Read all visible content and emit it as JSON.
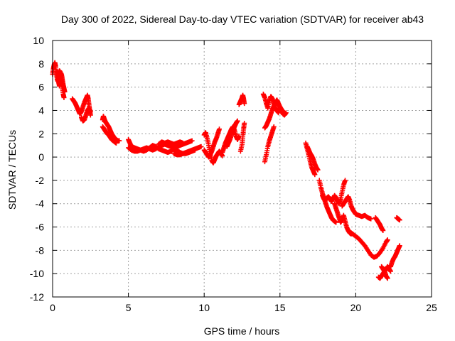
{
  "chart_data": {
    "type": "scatter",
    "title": "Day 300 of 2022, Sidereal Day-to-day VTEC variation (SDTVAR) for receiver ab43",
    "xlabel": "GPS time / hours",
    "ylabel": "SDTVAR / TECUs",
    "xlim": [
      0,
      25
    ],
    "ylim": [
      -12,
      10
    ],
    "xticks": [
      0,
      5,
      10,
      15,
      20,
      25
    ],
    "yticks": [
      -12,
      -10,
      -8,
      -6,
      -4,
      -2,
      0,
      2,
      4,
      6,
      8,
      10
    ],
    "grid": true,
    "marker": "plus",
    "color": "#ff0000",
    "segments": [
      [
        [
          0.0,
          7.1
        ],
        [
          0.05,
          7.6
        ],
        [
          0.1,
          7.9
        ],
        [
          0.15,
          8.1
        ],
        [
          0.2,
          7.8
        ],
        [
          0.25,
          7.2
        ],
        [
          0.3,
          6.7
        ],
        [
          0.35,
          6.5
        ],
        [
          0.4,
          7.0
        ],
        [
          0.45,
          7.4
        ],
        [
          0.5,
          7.3
        ],
        [
          0.55,
          6.9
        ],
        [
          0.6,
          6.5
        ],
        [
          0.65,
          6.0
        ],
        [
          0.7,
          5.4
        ],
        [
          0.75,
          5.1
        ]
      ],
      [
        [
          0.3,
          7.3
        ],
        [
          0.35,
          6.9
        ],
        [
          0.4,
          6.4
        ],
        [
          0.45,
          6.1
        ],
        [
          0.5,
          6.7
        ],
        [
          0.55,
          7.2
        ],
        [
          0.6,
          7.0
        ],
        [
          0.65,
          6.6
        ],
        [
          0.7,
          6.2
        ],
        [
          0.75,
          5.9
        ],
        [
          0.8,
          5.6
        ]
      ],
      [
        [
          1.3,
          5.0
        ],
        [
          1.4,
          4.8
        ],
        [
          1.5,
          4.6
        ],
        [
          1.6,
          4.3
        ],
        [
          1.7,
          4.0
        ],
        [
          1.8,
          3.7
        ],
        [
          1.9,
          3.9
        ],
        [
          2.0,
          4.3
        ],
        [
          2.1,
          4.7
        ],
        [
          2.2,
          5.0
        ],
        [
          2.3,
          5.3
        ],
        [
          2.35,
          5.0
        ],
        [
          2.4,
          4.5
        ],
        [
          2.45,
          4.0
        ],
        [
          2.5,
          3.6
        ]
      ],
      [
        [
          1.9,
          3.4
        ],
        [
          2.0,
          3.1
        ],
        [
          2.1,
          3.2
        ],
        [
          2.2,
          3.6
        ],
        [
          2.3,
          4.0
        ],
        [
          2.4,
          4.2
        ],
        [
          2.5,
          3.9
        ]
      ],
      [
        [
          3.3,
          3.2
        ],
        [
          3.35,
          3.5
        ],
        [
          3.4,
          3.3
        ],
        [
          3.5,
          3.0
        ],
        [
          3.6,
          2.8
        ],
        [
          3.7,
          2.6
        ],
        [
          3.8,
          2.3
        ],
        [
          3.9,
          2.0
        ],
        [
          4.0,
          1.8
        ],
        [
          4.1,
          1.6
        ],
        [
          4.2,
          1.5
        ],
        [
          4.3,
          1.4
        ],
        [
          4.4,
          1.4
        ]
      ],
      [
        [
          3.3,
          2.6
        ],
        [
          3.4,
          2.4
        ],
        [
          3.5,
          2.2
        ],
        [
          3.6,
          2.0
        ],
        [
          3.7,
          1.9
        ],
        [
          3.8,
          1.7
        ],
        [
          3.9,
          1.5
        ],
        [
          4.0,
          1.4
        ],
        [
          4.1,
          1.3
        ],
        [
          4.2,
          1.2
        ]
      ],
      [
        [
          5.0,
          1.5
        ],
        [
          5.1,
          1.2
        ],
        [
          5.2,
          0.9
        ],
        [
          5.4,
          0.8
        ],
        [
          5.6,
          0.7
        ],
        [
          5.8,
          0.6
        ],
        [
          6.0,
          0.7
        ],
        [
          6.2,
          0.8
        ],
        [
          6.4,
          0.7
        ],
        [
          6.6,
          0.6
        ],
        [
          6.8,
          0.7
        ],
        [
          7.0,
          0.9
        ],
        [
          7.2,
          1.0
        ],
        [
          7.4,
          1.1
        ],
        [
          7.6,
          1.0
        ],
        [
          7.8,
          0.9
        ],
        [
          8.0,
          0.8
        ],
        [
          8.2,
          0.9
        ],
        [
          8.4,
          1.0
        ],
        [
          8.6,
          1.1
        ],
        [
          8.8,
          1.2
        ],
        [
          9.0,
          1.3
        ],
        [
          9.2,
          1.4
        ]
      ],
      [
        [
          5.0,
          0.8
        ],
        [
          5.2,
          0.6
        ],
        [
          5.4,
          0.5
        ],
        [
          5.6,
          0.5
        ],
        [
          5.8,
          0.6
        ],
        [
          6.0,
          0.5
        ],
        [
          6.2,
          0.6
        ],
        [
          6.4,
          0.8
        ],
        [
          6.6,
          1.0
        ],
        [
          6.8,
          0.9
        ],
        [
          7.0,
          0.7
        ],
        [
          7.2,
          0.6
        ],
        [
          7.4,
          0.5
        ],
        [
          7.6,
          0.4
        ],
        [
          7.8,
          0.5
        ],
        [
          8.0,
          0.7
        ],
        [
          8.2,
          0.6
        ],
        [
          8.4,
          0.4
        ],
        [
          8.6,
          0.3
        ],
        [
          8.8,
          0.3
        ],
        [
          9.0,
          0.4
        ],
        [
          9.2,
          0.5
        ],
        [
          9.4,
          0.6
        ]
      ],
      [
        [
          7.0,
          1.1
        ],
        [
          7.2,
          1.3
        ],
        [
          7.4,
          1.2
        ],
        [
          7.6,
          1.3
        ],
        [
          7.8,
          1.2
        ],
        [
          8.0,
          1.1
        ],
        [
          8.2,
          1.2
        ],
        [
          8.4,
          1.3
        ],
        [
          8.6,
          1.2
        ]
      ],
      [
        [
          8.0,
          0.3
        ],
        [
          8.2,
          0.2
        ],
        [
          8.4,
          0.2
        ],
        [
          8.6,
          0.3
        ],
        [
          8.8,
          0.4
        ],
        [
          9.0,
          0.5
        ],
        [
          9.2,
          0.6
        ],
        [
          9.4,
          0.7
        ],
        [
          9.6,
          0.8
        ],
        [
          9.8,
          0.9
        ]
      ],
      [
        [
          10.0,
          1.9
        ],
        [
          10.1,
          2.1
        ],
        [
          10.2,
          1.6
        ],
        [
          10.3,
          1.0
        ],
        [
          10.4,
          0.3
        ],
        [
          10.5,
          -0.3
        ],
        [
          10.6,
          -0.5
        ],
        [
          10.7,
          -0.2
        ],
        [
          10.8,
          0.1
        ],
        [
          10.9,
          0.3
        ],
        [
          11.0,
          0.5
        ],
        [
          11.1,
          0.3
        ],
        [
          11.2,
          0.1
        ]
      ],
      [
        [
          10.0,
          0.6
        ],
        [
          10.1,
          0.4
        ],
        [
          10.2,
          0.2
        ],
        [
          10.3,
          0.0
        ],
        [
          10.4,
          0.2
        ],
        [
          10.5,
          0.5
        ],
        [
          10.6,
          0.9
        ],
        [
          10.7,
          1.3
        ],
        [
          10.8,
          1.6
        ],
        [
          10.9,
          2.0
        ],
        [
          11.0,
          2.4
        ]
      ],
      [
        [
          11.2,
          0.4
        ],
        [
          11.3,
          0.8
        ],
        [
          11.4,
          1.2
        ],
        [
          11.5,
          1.5
        ],
        [
          11.6,
          1.8
        ],
        [
          11.7,
          2.1
        ],
        [
          11.8,
          2.4
        ],
        [
          11.9,
          2.6
        ],
        [
          12.0,
          2.3
        ],
        [
          12.1,
          1.8
        ],
        [
          12.2,
          1.5
        ],
        [
          12.3,
          1.8
        ]
      ],
      [
        [
          11.5,
          0.9
        ],
        [
          11.6,
          1.2
        ],
        [
          11.7,
          1.5
        ],
        [
          11.8,
          1.9
        ],
        [
          11.9,
          2.3
        ],
        [
          12.0,
          2.6
        ],
        [
          12.1,
          2.9
        ],
        [
          12.2,
          3.1
        ]
      ],
      [
        [
          12.3,
          4.5
        ],
        [
          12.4,
          4.8
        ],
        [
          12.5,
          5.1
        ],
        [
          12.55,
          5.3
        ],
        [
          12.6,
          5.0
        ],
        [
          12.65,
          4.6
        ]
      ],
      [
        [
          12.4,
          0.5
        ],
        [
          12.5,
          1.1
        ],
        [
          12.55,
          1.8
        ],
        [
          12.6,
          2.4
        ],
        [
          12.65,
          2.9
        ]
      ],
      [
        [
          13.9,
          5.4
        ],
        [
          14.0,
          5.1
        ],
        [
          14.1,
          4.6
        ],
        [
          14.2,
          4.2
        ],
        [
          14.3,
          4.8
        ],
        [
          14.4,
          5.2
        ],
        [
          14.5,
          5.0
        ],
        [
          14.6,
          4.6
        ],
        [
          14.7,
          4.2
        ],
        [
          14.8,
          4.0
        ],
        [
          14.9,
          3.8
        ],
        [
          15.0,
          4.3
        ],
        [
          15.1,
          4.0
        ],
        [
          15.2,
          3.7
        ],
        [
          15.3,
          3.6
        ],
        [
          15.4,
          3.8
        ]
      ],
      [
        [
          14.0,
          2.5
        ],
        [
          14.1,
          2.7
        ],
        [
          14.2,
          3.0
        ],
        [
          14.3,
          3.3
        ],
        [
          14.4,
          3.7
        ],
        [
          14.5,
          4.1
        ],
        [
          14.6,
          4.4
        ],
        [
          14.7,
          4.7
        ],
        [
          14.8,
          4.9
        ],
        [
          14.9,
          4.6
        ],
        [
          15.0,
          4.3
        ],
        [
          15.1,
          4.1
        ],
        [
          15.2,
          3.9
        ],
        [
          15.3,
          3.7
        ]
      ],
      [
        [
          14.0,
          -0.4
        ],
        [
          14.1,
          0.2
        ],
        [
          14.2,
          0.9
        ],
        [
          14.3,
          1.4
        ],
        [
          14.4,
          1.8
        ],
        [
          14.5,
          2.2
        ],
        [
          14.6,
          2.6
        ]
      ],
      [
        [
          16.7,
          1.2
        ],
        [
          16.8,
          0.7
        ],
        [
          16.9,
          0.2
        ],
        [
          17.0,
          -0.4
        ],
        [
          17.1,
          -0.9
        ],
        [
          17.2,
          -1.2
        ],
        [
          17.3,
          -1.5
        ]
      ],
      [
        [
          16.8,
          0.9
        ],
        [
          16.9,
          0.6
        ],
        [
          17.0,
          0.3
        ],
        [
          17.1,
          0.1
        ],
        [
          17.2,
          -0.2
        ],
        [
          17.3,
          -0.6
        ],
        [
          17.4,
          -0.9
        ],
        [
          17.5,
          -1.1
        ]
      ],
      [
        [
          17.6,
          -2.0
        ],
        [
          17.7,
          -2.6
        ],
        [
          17.8,
          -3.1
        ],
        [
          17.9,
          -3.5
        ],
        [
          18.0,
          -3.9
        ],
        [
          18.1,
          -4.3
        ],
        [
          18.2,
          -4.6
        ],
        [
          18.3,
          -4.9
        ],
        [
          18.4,
          -5.2
        ],
        [
          18.5,
          -5.4
        ],
        [
          18.6,
          -5.5
        ],
        [
          18.7,
          -5.6
        ]
      ],
      [
        [
          17.8,
          -3.3
        ],
        [
          17.9,
          -3.6
        ],
        [
          18.0,
          -3.7
        ],
        [
          18.1,
          -3.5
        ],
        [
          18.2,
          -3.4
        ],
        [
          18.3,
          -3.6
        ],
        [
          18.4,
          -3.8
        ],
        [
          18.5,
          -3.6
        ],
        [
          18.6,
          -3.3
        ],
        [
          18.7,
          -3.5
        ],
        [
          18.8,
          -3.8
        ],
        [
          18.9,
          -4.0
        ],
        [
          19.0,
          -3.6
        ],
        [
          19.1,
          -3.0
        ],
        [
          19.2,
          -2.4
        ],
        [
          19.3,
          -2.0
        ]
      ],
      [
        [
          18.6,
          -4.0
        ],
        [
          18.7,
          -4.4
        ],
        [
          18.8,
          -4.8
        ],
        [
          18.9,
          -5.2
        ],
        [
          19.0,
          -5.6
        ],
        [
          19.1,
          -5.4
        ],
        [
          19.2,
          -5.0
        ],
        [
          19.3,
          -5.5
        ],
        [
          19.4,
          -6.0
        ],
        [
          19.5,
          -6.3
        ],
        [
          19.6,
          -6.5
        ],
        [
          19.7,
          -6.6
        ]
      ],
      [
        [
          19.1,
          -4.2
        ],
        [
          19.2,
          -4.0
        ],
        [
          19.3,
          -3.8
        ],
        [
          19.4,
          -3.6
        ],
        [
          19.5,
          -3.4
        ],
        [
          19.6,
          -3.7
        ],
        [
          19.7,
          -4.2
        ],
        [
          19.8,
          -4.5
        ],
        [
          19.9,
          -4.7
        ],
        [
          20.0,
          -4.9
        ],
        [
          20.2,
          -5.0
        ],
        [
          20.4,
          -5.1
        ],
        [
          20.6,
          -5.0
        ],
        [
          20.8,
          -5.2
        ],
        [
          21.0,
          -5.3
        ]
      ],
      [
        [
          19.6,
          -6.4
        ],
        [
          19.8,
          -6.6
        ],
        [
          20.0,
          -6.8
        ],
        [
          20.2,
          -7.0
        ],
        [
          20.4,
          -7.3
        ],
        [
          20.6,
          -7.6
        ],
        [
          20.8,
          -8.0
        ],
        [
          21.0,
          -8.4
        ],
        [
          21.2,
          -8.6
        ],
        [
          21.4,
          -8.5
        ],
        [
          21.6,
          -8.2
        ],
        [
          21.8,
          -7.8
        ],
        [
          22.0,
          -7.3
        ],
        [
          22.1,
          -7.1
        ]
      ],
      [
        [
          21.3,
          -5.2
        ],
        [
          21.4,
          -5.4
        ],
        [
          21.5,
          -5.6
        ],
        [
          21.6,
          -5.8
        ],
        [
          21.7,
          -6.1
        ],
        [
          21.8,
          -6.3
        ]
      ],
      [
        [
          21.5,
          -10.3
        ],
        [
          21.6,
          -10.4
        ],
        [
          21.7,
          -10.2
        ],
        [
          21.8,
          -10.0
        ],
        [
          21.9,
          -9.8
        ],
        [
          22.0,
          -9.6
        ],
        [
          22.1,
          -9.4
        ],
        [
          22.2,
          -9.6
        ],
        [
          22.3,
          -9.8
        ]
      ],
      [
        [
          21.7,
          -9.4
        ],
        [
          21.8,
          -9.6
        ],
        [
          21.9,
          -9.8
        ],
        [
          22.0,
          -10.2
        ],
        [
          22.1,
          -10.4
        ]
      ],
      [
        [
          22.3,
          -9.4
        ],
        [
          22.4,
          -9.0
        ],
        [
          22.5,
          -8.7
        ],
        [
          22.6,
          -8.5
        ],
        [
          22.7,
          -8.2
        ],
        [
          22.8,
          -7.9
        ],
        [
          22.9,
          -7.6
        ]
      ],
      [
        [
          22.7,
          -5.2
        ],
        [
          22.8,
          -5.3
        ],
        [
          22.9,
          -5.4
        ]
      ]
    ]
  }
}
